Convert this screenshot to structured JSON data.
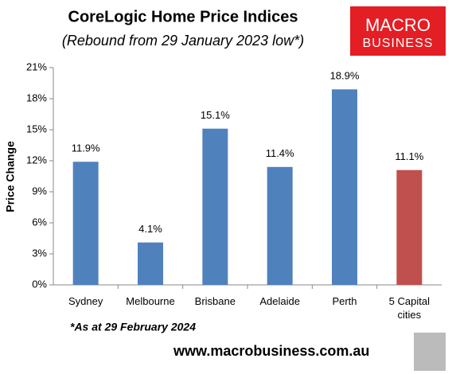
{
  "chart_data": {
    "type": "bar",
    "title": "CoreLogic Home Price Indices",
    "subtitle": "(Rebound from 29 January 2023 low*)",
    "y_label": "Price Change",
    "categories": [
      "Sydney",
      "Melbourne",
      "Brisbane",
      "Adelaide",
      "Perth",
      "5 Capital cities"
    ],
    "values": [
      11.9,
      4.1,
      15.1,
      11.4,
      18.9,
      11.1
    ],
    "value_labels": [
      "11.9%",
      "4.1%",
      "15.1%",
      "11.4%",
      "18.9%",
      "11.1%"
    ],
    "colors": [
      "#4f81bd",
      "#4f81bd",
      "#4f81bd",
      "#4f81bd",
      "#4f81bd",
      "#c0504d"
    ],
    "ylim": [
      0,
      21
    ],
    "yticks": [
      {
        "value": 0,
        "label": "0%"
      },
      {
        "value": 3,
        "label": "3%"
      },
      {
        "value": 6,
        "label": "6%"
      },
      {
        "value": 9,
        "label": "9%"
      },
      {
        "value": 12,
        "label": "12%"
      },
      {
        "value": 15,
        "label": "15%"
      },
      {
        "value": 18,
        "label": "18%"
      },
      {
        "value": 21,
        "label": "21%"
      }
    ],
    "grid": false,
    "annotations": [
      "*As at 29 February 2024",
      "www.macrobusiness.com.au"
    ],
    "logo": [
      "MACRO",
      "BUSINESS"
    ]
  }
}
